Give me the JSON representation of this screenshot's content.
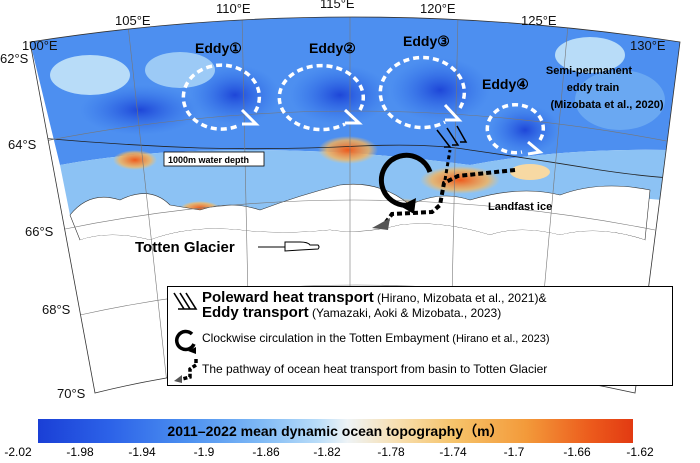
{
  "map": {
    "lon_labels": [
      "100°E",
      "105°E",
      "110°E",
      "115°E",
      "120°E",
      "125°E",
      "130°E"
    ],
    "lat_labels": [
      "62°S",
      "64°S",
      "66°S",
      "68°S",
      "70°S"
    ],
    "eddies": [
      "Eddy①",
      "Eddy②",
      "Eddy③",
      "Eddy④"
    ],
    "eddy_train_note": [
      "Semi-permanent",
      "eddy train",
      "(Mizobata et al., 2020)"
    ],
    "water_depth_label": "1000m water depth",
    "landfast_ice_label": "Landfast ice",
    "glacier_label": "Totten Glacier"
  },
  "legend": {
    "heat_transport_title": "Poleward heat transport",
    "heat_transport_ref": " (Hirano, Mizobata et al., 2021)&",
    "eddy_transport_title": "Eddy transport",
    "eddy_transport_ref": " (Yamazaki, Aoki & Mizobata., 2023)",
    "circulation_text": "Clockwise circulation in the Totten Embayment",
    "circulation_ref": " (Hirano et al., 2023)",
    "pathway_text": "The pathway of ocean heat transport from basin to Totten Glacier"
  },
  "colorbar": {
    "title": "2011–2022 mean dynamic ocean topography（m）",
    "ticks": [
      "-2.02",
      "-1.98",
      "-1.94",
      "-1.9",
      "-1.86",
      "-1.82",
      "-1.78",
      "-1.74",
      "-1.7",
      "-1.66",
      "-1.62"
    ],
    "range": [
      -2.02,
      -1.62
    ],
    "colors": [
      "#1a3fd6",
      "#4b8ff0",
      "#b8dcf8",
      "#eef3f6",
      "#f6c36a",
      "#e23a12"
    ]
  }
}
